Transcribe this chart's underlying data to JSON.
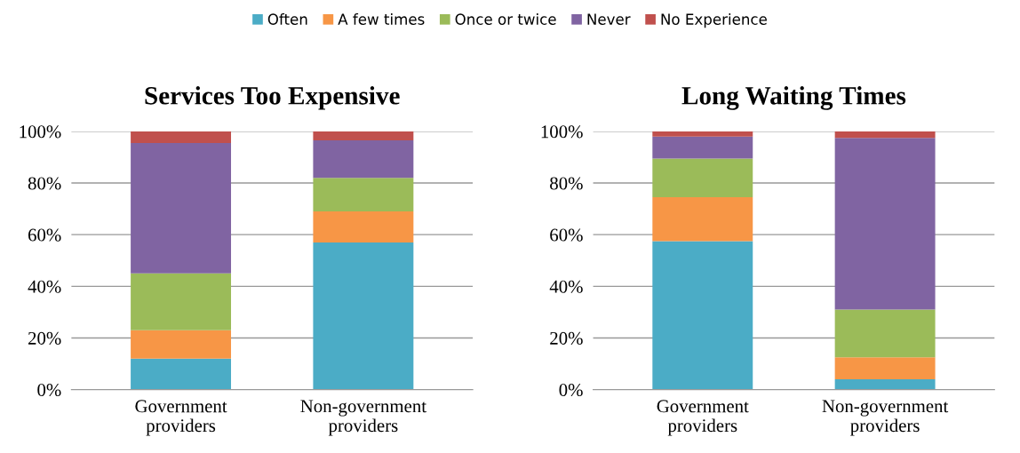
{
  "chart_data": [
    {
      "type": "bar",
      "title": "Services Too Expensive",
      "stacked": true,
      "legend": "top",
      "grid": "y",
      "categories": [
        "Government\nproviders",
        "Non-government\nproviders"
      ],
      "ylim": [
        0,
        100
      ],
      "yticks": [
        {
          "value": 0,
          "label": "0%"
        },
        {
          "value": 20,
          "label": "20%"
        },
        {
          "value": 40,
          "label": "40%"
        },
        {
          "value": 60,
          "label": "60%"
        },
        {
          "value": 80,
          "label": "80%"
        },
        {
          "value": 100,
          "label": "100%"
        }
      ],
      "series": [
        {
          "name": "Often",
          "color": "#4bacc6",
          "values": [
            12,
            57
          ]
        },
        {
          "name": "A few times",
          "color": "#f79646",
          "values": [
            11,
            12
          ]
        },
        {
          "name": "Once or twice",
          "color": "#9bbb59",
          "values": [
            22,
            13
          ]
        },
        {
          "name": "Never",
          "color": "#8064a2",
          "values": [
            50.5,
            14.5
          ]
        },
        {
          "name": "No Experience",
          "color": "#c0504d",
          "values": [
            4.5,
            3.5
          ]
        }
      ]
    },
    {
      "type": "bar",
      "title": "Long Waiting Times",
      "stacked": true,
      "grid": "y",
      "categories": [
        "Government\nproviders",
        "Non-government\nproviders"
      ],
      "ylim": [
        0,
        100
      ],
      "yticks": [
        {
          "value": 0,
          "label": "0%"
        },
        {
          "value": 20,
          "label": "20%"
        },
        {
          "value": 40,
          "label": "40%"
        },
        {
          "value": 60,
          "label": "60%"
        },
        {
          "value": 80,
          "label": "80%"
        },
        {
          "value": 100,
          "label": "100%"
        }
      ],
      "series": [
        {
          "color": "#4bacc6",
          "values": [
            57.5,
            4
          ]
        },
        {
          "color": "#f79646",
          "values": [
            17,
            8.5
          ]
        },
        {
          "color": "#9bbb59",
          "values": [
            15,
            18.5
          ]
        },
        {
          "color": "#8064a2",
          "values": [
            8.5,
            66.5
          ]
        },
        {
          "color": "#c0504d",
          "values": [
            2,
            2.5
          ]
        }
      ]
    }
  ]
}
